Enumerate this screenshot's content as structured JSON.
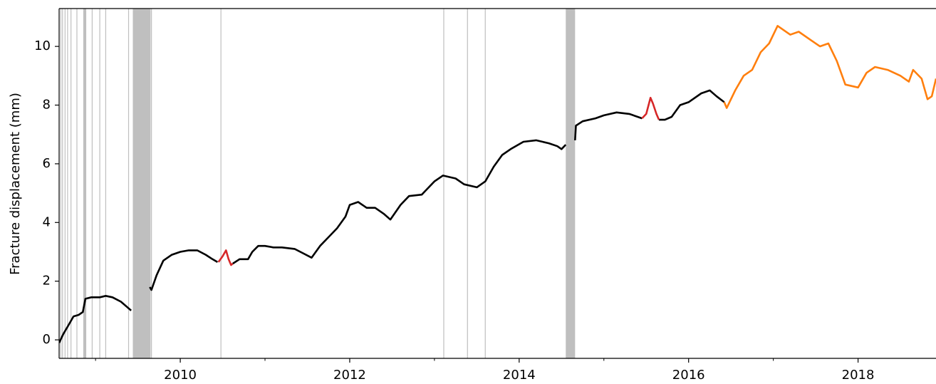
{
  "chart_data": {
    "type": "line",
    "ylabel": "Fracture displacement (mm)",
    "xlim": [
      2008.57,
      2018.92
    ],
    "ylim": [
      -0.63,
      11.29
    ],
    "xticks": [
      2010,
      2012,
      2014,
      2016,
      2018
    ],
    "xminorticks": [
      2009,
      2011,
      2013,
      2015,
      2017
    ],
    "yticks": [
      0,
      2,
      4,
      6,
      8,
      10
    ],
    "shade_color": "#bfbfbf",
    "shaded": [
      [
        2009.44,
        2009.65
      ],
      [
        2014.55,
        2014.66
      ],
      [
        2008.855,
        2008.89
      ]
    ],
    "vlines": [
      2008.59,
      2008.61,
      2008.64,
      2008.67,
      2008.71,
      2008.78,
      2008.96,
      2009.05,
      2009.12,
      2009.39,
      2009.66,
      2010.48,
      2013.11,
      2013.39,
      2013.6
    ],
    "series": [
      {
        "color": "#000000",
        "x": [
          2008.57,
          2008.62,
          2008.68,
          2008.74,
          2008.8,
          2008.85,
          2008.88,
          2008.95,
          2009.05,
          2009.12,
          2009.2,
          2009.3,
          2009.38,
          2009.42,
          2009.43,
          2009.64,
          2009.66,
          2009.72,
          2009.8,
          2009.9,
          2010.0,
          2010.1,
          2010.2,
          2010.3,
          2010.38,
          2010.44,
          2010.45,
          2010.62,
          2010.7,
          2010.8,
          2010.85,
          2010.92,
          2011.0,
          2011.1,
          2011.2,
          2011.35,
          2011.45,
          2011.55,
          2011.65,
          2011.75,
          2011.85,
          2011.95,
          2012.0,
          2012.1,
          2012.2,
          2012.3,
          2012.4,
          2012.48,
          2012.6,
          2012.7,
          2012.85,
          2012.9,
          2013.0,
          2013.1,
          2013.25,
          2013.35,
          2013.5,
          2013.6,
          2013.7,
          2013.8,
          2013.9,
          2014.05,
          2014.2,
          2014.35,
          2014.45,
          2014.5,
          2014.55,
          2014.56,
          2014.66,
          2014.67,
          2014.75,
          2014.9,
          2015.0,
          2015.15,
          2015.3,
          2015.45,
          2015.46,
          2015.65,
          2015.72,
          2015.8,
          2015.9,
          2016.0,
          2016.15,
          2016.25,
          2016.33,
          2016.42
        ],
        "values": [
          -0.1,
          0.2,
          0.5,
          0.8,
          0.85,
          0.95,
          1.4,
          1.45,
          1.45,
          1.5,
          1.45,
          1.3,
          1.1,
          1.0,
          null,
          1.8,
          1.7,
          2.2,
          2.7,
          2.9,
          3.0,
          3.05,
          3.05,
          2.9,
          2.75,
          2.65,
          null,
          2.6,
          2.75,
          2.75,
          3.0,
          3.2,
          3.2,
          3.15,
          3.15,
          3.1,
          2.95,
          2.8,
          3.2,
          3.5,
          3.8,
          4.2,
          4.6,
          4.7,
          4.5,
          4.5,
          4.3,
          4.1,
          4.6,
          4.9,
          4.95,
          5.1,
          5.4,
          5.6,
          5.5,
          5.3,
          5.2,
          5.4,
          5.9,
          6.3,
          6.5,
          6.75,
          6.8,
          6.7,
          6.6,
          6.5,
          6.65,
          null,
          6.8,
          7.3,
          7.45,
          7.55,
          7.65,
          7.75,
          7.7,
          7.55,
          null,
          7.5,
          7.5,
          7.6,
          8.0,
          8.1,
          8.4,
          8.5,
          8.3,
          8.1
        ]
      },
      {
        "color": "#d62728",
        "x": [
          2010.45,
          2010.5,
          2010.54,
          2010.57,
          2010.6,
          2010.62,
          2010.63,
          2015.45,
          2015.5,
          2015.55,
          2015.58,
          2015.62,
          2015.65
        ],
        "values": [
          2.65,
          2.85,
          3.05,
          2.75,
          2.55,
          2.6,
          null,
          7.55,
          7.7,
          8.25,
          8.05,
          7.7,
          7.5
        ]
      },
      {
        "color": "#ff7f0e",
        "x": [
          2016.42,
          2016.45,
          2016.55,
          2016.65,
          2016.75,
          2016.85,
          2016.95,
          2017.05,
          2017.2,
          2017.3,
          2017.45,
          2017.55,
          2017.65,
          2017.75,
          2017.85,
          2018.0,
          2018.1,
          2018.2,
          2018.35,
          2018.5,
          2018.6,
          2018.65,
          2018.75,
          2018.82,
          2018.87,
          2018.92
        ],
        "values": [
          8.1,
          7.9,
          8.5,
          9.0,
          9.2,
          9.8,
          10.1,
          10.7,
          10.4,
          10.5,
          10.2,
          10.0,
          10.1,
          9.5,
          8.7,
          8.6,
          9.1,
          9.3,
          9.2,
          9.0,
          8.8,
          9.2,
          8.9,
          8.2,
          8.3,
          8.9
        ]
      }
    ]
  }
}
